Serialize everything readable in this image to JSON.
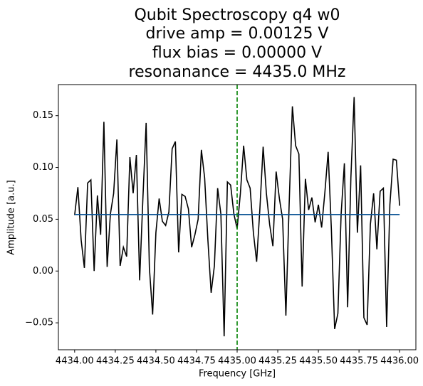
{
  "chart_data": {
    "type": "line",
    "title": [
      "Qubit Spectroscopy q4 w0",
      "drive amp = 0.00125 V",
      "flux bias = 0.00000 V",
      "resonanance = 4435.0 MHz"
    ],
    "xlabel": "Frequency [GHz]",
    "ylabel": "Amplitude [a.u.]",
    "xlim": [
      4433.9,
      4436.1
    ],
    "ylim": [
      -0.076,
      0.18
    ],
    "xticks": [
      {
        "value": 4434.0,
        "label": "4434.00"
      },
      {
        "value": 4434.25,
        "label": "4434.25"
      },
      {
        "value": 4434.5,
        "label": "4434.50"
      },
      {
        "value": 4434.75,
        "label": "4434.75"
      },
      {
        "value": 4435.0,
        "label": "4435.00"
      },
      {
        "value": 4435.25,
        "label": "4435.25"
      },
      {
        "value": 4435.5,
        "label": "4435.50"
      },
      {
        "value": 4435.75,
        "label": "4435.75"
      },
      {
        "value": 4436.0,
        "label": "4436.00"
      }
    ],
    "yticks": [
      {
        "value": -0.05,
        "label": "−0.05"
      },
      {
        "value": 0,
        "label": "0.00"
      },
      0.05,
      {
        "value": 0.1,
        "label": "0.10"
      },
      0.15
    ],
    "vline": {
      "x": 4435.0,
      "color": "#008000"
    },
    "series": [
      {
        "color": "#000000",
        "x": [
          4434.0,
          4434.02,
          4434.04,
          4434.06,
          4434.08,
          4434.1,
          4434.12,
          4434.14,
          4434.16,
          4434.18,
          4434.2,
          4434.22,
          4434.24,
          4434.26,
          4434.28,
          4434.3,
          4434.32,
          4434.34,
          4434.36,
          4434.38,
          4434.4,
          4434.42,
          4434.44,
          4434.46,
          4434.48,
          4434.5,
          4434.52,
          4434.54,
          4434.56,
          4434.58,
          4434.6,
          4434.62,
          4434.64,
          4434.66,
          4434.68,
          4434.7,
          4434.72,
          4434.74,
          4434.76,
          4434.78,
          4434.8,
          4434.82,
          4434.84,
          4434.86,
          4434.88,
          4434.9,
          4434.92,
          4434.94,
          4434.96,
          4434.98,
          4435.0,
          4435.02,
          4435.04,
          4435.06,
          4435.08,
          4435.1,
          4435.12,
          4435.14,
          4435.16,
          4435.18,
          4435.2,
          4435.22,
          4435.24,
          4435.26,
          4435.28,
          4435.3,
          4435.32,
          4435.34,
          4435.36,
          4435.38,
          4435.4,
          4435.42,
          4435.44,
          4435.46,
          4435.48,
          4435.5,
          4435.52,
          4435.54,
          4435.56,
          4435.58,
          4435.6,
          4435.62,
          4435.64,
          4435.66,
          4435.68,
          4435.7,
          4435.72,
          4435.74,
          4435.76,
          4435.78,
          4435.8,
          4435.82,
          4435.84,
          4435.86,
          4435.88,
          4435.9,
          4435.92,
          4435.94,
          4435.96,
          4435.98,
          4436.0
        ],
        "values": [
          0.054,
          0.081,
          0.03,
          0.003,
          0.085,
          0.088,
          0.0,
          0.073,
          0.035,
          0.144,
          0.004,
          0.055,
          0.075,
          0.127,
          0.005,
          0.023,
          0.014,
          0.11,
          0.075,
          0.112,
          -0.009,
          0.07,
          0.143,
          0.003,
          -0.042,
          0.037,
          0.07,
          0.048,
          0.044,
          0.057,
          0.118,
          0.125,
          0.018,
          0.074,
          0.072,
          0.06,
          0.023,
          0.035,
          0.05,
          0.117,
          0.09,
          0.03,
          -0.021,
          0.005,
          0.08,
          0.055,
          -0.063,
          0.086,
          0.083,
          0.055,
          0.041,
          0.075,
          0.121,
          0.088,
          0.08,
          0.037,
          0.009,
          0.06,
          0.12,
          0.075,
          0.045,
          0.024,
          0.096,
          0.07,
          0.05,
          -0.043,
          0.064,
          0.159,
          0.121,
          0.113,
          -0.015,
          0.089,
          0.059,
          0.071,
          0.047,
          0.064,
          0.042,
          0.076,
          0.115,
          0.04,
          -0.056,
          -0.041,
          0.055,
          0.104,
          -0.035,
          0.09,
          0.168,
          0.037,
          0.102,
          -0.045,
          -0.052,
          0.045,
          0.075,
          0.021,
          0.077,
          0.08,
          -0.054,
          0.064,
          0.108,
          0.107,
          0.063
        ]
      },
      {
        "color": "#0b5394",
        "x": [
          4434.0,
          4436.0
        ],
        "values": [
          0.0545,
          0.0545
        ]
      }
    ]
  }
}
